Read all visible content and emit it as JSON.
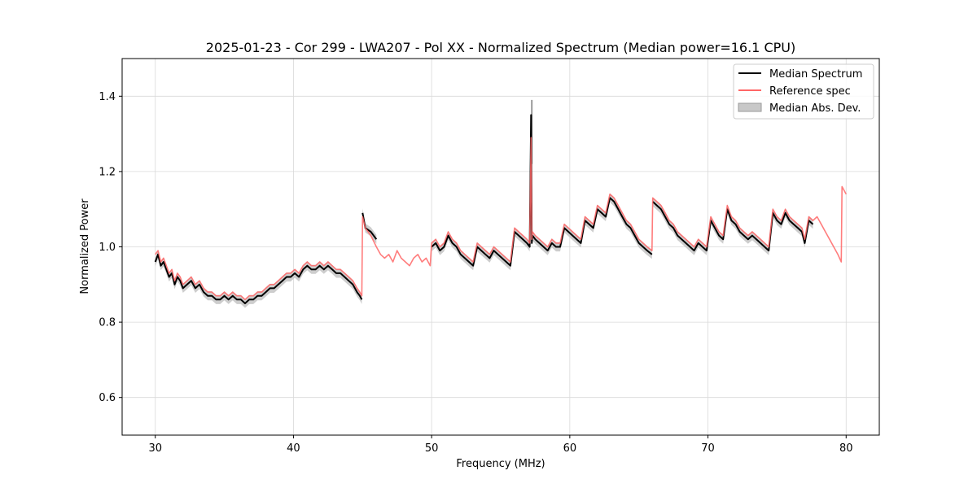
{
  "chart_data": {
    "type": "line",
    "title": "2025-01-23 - Cor 299 - LWA207 - Pol XX - Normalized Spectrum (Median power=16.1 CPU)",
    "xlabel": "Frequency (MHz)",
    "ylabel": "Normalized Power",
    "xlim": [
      27.6,
      82.4
    ],
    "ylim": [
      0.5,
      1.5
    ],
    "xticks": [
      30,
      40,
      50,
      60,
      70,
      80
    ],
    "yticks": [
      0.6,
      0.8,
      1.0,
      1.2,
      1.4
    ],
    "xtick_labels": [
      "30",
      "40",
      "50",
      "60",
      "70",
      "80"
    ],
    "ytick_labels": [
      "0.6",
      "0.8",
      "1.0",
      "1.2",
      "1.4"
    ],
    "grid": true,
    "legend_position": "top-right",
    "colors": {
      "median": "#000000",
      "reference": "#ff6666",
      "mad_fill": "#c8c8c8",
      "mad_edge": "#9a9a9a"
    },
    "series": [
      {
        "name": "Median Spectrum",
        "segments": [
          {
            "x": [
              30.0,
              30.2,
              30.4,
              30.6,
              30.8,
              31.0,
              31.2,
              31.4,
              31.6,
              31.8,
              32.0,
              32.3,
              32.6,
              32.9,
              33.2,
              33.5,
              33.8,
              34.1,
              34.4,
              34.7,
              35.0,
              35.3,
              35.6,
              35.9,
              36.2,
              36.5,
              36.8,
              37.1,
              37.4,
              37.7,
              38.0,
              38.3,
              38.6,
              38.9,
              39.2,
              39.5,
              39.8,
              40.1,
              40.4,
              40.7,
              41.0,
              41.3,
              41.6,
              41.9,
              42.2,
              42.5,
              42.8,
              43.1,
              43.4,
              43.7,
              44.0,
              44.3,
              44.6,
              44.8,
              44.95
            ],
            "y": [
              0.96,
              0.98,
              0.95,
              0.96,
              0.94,
              0.92,
              0.93,
              0.9,
              0.92,
              0.91,
              0.89,
              0.9,
              0.91,
              0.89,
              0.9,
              0.88,
              0.87,
              0.87,
              0.86,
              0.86,
              0.87,
              0.86,
              0.87,
              0.86,
              0.86,
              0.85,
              0.86,
              0.86,
              0.87,
              0.87,
              0.88,
              0.89,
              0.89,
              0.9,
              0.91,
              0.92,
              0.92,
              0.93,
              0.92,
              0.94,
              0.95,
              0.94,
              0.94,
              0.95,
              0.94,
              0.95,
              0.94,
              0.93,
              0.93,
              0.92,
              0.91,
              0.9,
              0.88,
              0.87,
              0.86
            ]
          },
          {
            "x": [
              45.0,
              45.2,
              45.6,
              46.0
            ],
            "y": [
              1.09,
              1.05,
              1.04,
              1.02
            ]
          },
          {
            "x": [
              50.0,
              50.3,
              50.6,
              50.9,
              51.2,
              51.5,
              51.8,
              52.1,
              52.4,
              52.7,
              53.0,
              53.3,
              53.6,
              53.9,
              54.2,
              54.5,
              54.8,
              55.1,
              55.4,
              55.7,
              56.0,
              56.3,
              56.6,
              56.9,
              57.1,
              57.2,
              57.25,
              57.3,
              57.5,
              57.8,
              58.1,
              58.4,
              58.7,
              59.0,
              59.3,
              59.6,
              59.9,
              60.2,
              60.5,
              60.8,
              61.1,
              61.4,
              61.7,
              62.0,
              62.3,
              62.6,
              62.9,
              63.2,
              63.5,
              63.8,
              64.1,
              64.4,
              64.7,
              65.0,
              65.3,
              65.6,
              65.95
            ],
            "y": [
              1.0,
              1.01,
              0.99,
              1.0,
              1.03,
              1.01,
              1.0,
              0.98,
              0.97,
              0.96,
              0.95,
              1.0,
              0.99,
              0.98,
              0.97,
              0.99,
              0.98,
              0.97,
              0.96,
              0.95,
              1.04,
              1.03,
              1.02,
              1.01,
              1.0,
              1.35,
              1.01,
              1.03,
              1.02,
              1.01,
              1.0,
              0.99,
              1.01,
              1.0,
              1.0,
              1.05,
              1.04,
              1.03,
              1.02,
              1.01,
              1.07,
              1.06,
              1.05,
              1.1,
              1.09,
              1.08,
              1.13,
              1.12,
              1.1,
              1.08,
              1.06,
              1.05,
              1.03,
              1.01,
              1.0,
              0.99,
              0.98
            ]
          },
          {
            "x": [
              66.0,
              66.3,
              66.6,
              66.9,
              67.2,
              67.5,
              67.8,
              68.1,
              68.4,
              68.7,
              69.0,
              69.3,
              69.6,
              69.9,
              70.2,
              70.5,
              70.8,
              71.1,
              71.4,
              71.7,
              72.0,
              72.3,
              72.6,
              72.9,
              73.2,
              73.5,
              73.8,
              74.1,
              74.4,
              74.7,
              75.0,
              75.3,
              75.6,
              75.9,
              76.2,
              76.5,
              76.8,
              77.0,
              77.3,
              77.6
            ],
            "y": [
              1.12,
              1.11,
              1.1,
              1.08,
              1.06,
              1.05,
              1.03,
              1.02,
              1.01,
              1.0,
              0.99,
              1.01,
              1.0,
              0.99,
              1.07,
              1.05,
              1.03,
              1.02,
              1.1,
              1.07,
              1.06,
              1.04,
              1.03,
              1.02,
              1.03,
              1.02,
              1.01,
              1.0,
              0.99,
              1.09,
              1.07,
              1.06,
              1.09,
              1.07,
              1.06,
              1.05,
              1.04,
              1.01,
              1.07,
              1.06
            ]
          }
        ]
      },
      {
        "name": "Reference spec",
        "segments": [
          {
            "x": [
              30.0,
              30.2,
              30.4,
              30.6,
              30.8,
              31.0,
              31.2,
              31.4,
              31.6,
              31.8,
              32.0,
              32.3,
              32.6,
              32.9,
              33.2,
              33.5,
              33.8,
              34.1,
              34.4,
              34.7,
              35.0,
              35.3,
              35.6,
              35.9,
              36.2,
              36.5,
              36.8,
              37.1,
              37.4,
              37.7,
              38.0,
              38.3,
              38.6,
              38.9,
              39.2,
              39.5,
              39.8,
              40.1,
              40.4,
              40.7,
              41.0,
              41.3,
              41.6,
              41.9,
              42.2,
              42.5,
              42.8,
              43.1,
              43.4,
              43.7,
              44.0,
              44.3,
              44.6,
              44.8,
              44.95,
              45.0,
              45.2,
              45.6,
              46.0,
              46.3,
              46.6,
              46.9,
              47.2,
              47.5,
              47.8,
              48.1,
              48.4,
              48.7,
              49.0,
              49.3,
              49.6,
              49.9,
              50.0,
              50.3,
              50.6,
              50.9,
              51.2,
              51.5,
              51.8,
              52.1,
              52.4,
              52.7,
              53.0,
              53.3,
              53.6,
              53.9,
              54.2,
              54.5,
              54.8,
              55.1,
              55.4,
              55.7,
              56.0,
              56.3,
              56.6,
              56.9,
              57.1,
              57.2,
              57.25,
              57.3,
              57.5,
              57.8,
              58.1,
              58.4,
              58.7,
              59.0,
              59.3,
              59.6,
              59.9,
              60.2,
              60.5,
              60.8,
              61.1,
              61.4,
              61.7,
              62.0,
              62.3,
              62.6,
              62.9,
              63.2,
              63.5,
              63.8,
              64.1,
              64.4,
              64.7,
              65.0,
              65.3,
              65.6,
              65.95,
              66.0,
              66.3,
              66.6,
              66.9,
              67.2,
              67.5,
              67.8,
              68.1,
              68.4,
              68.7,
              69.0,
              69.3,
              69.6,
              69.9,
              70.2,
              70.5,
              70.8,
              71.1,
              71.4,
              71.7,
              72.0,
              72.3,
              72.6,
              72.9,
              73.2,
              73.5,
              73.8,
              74.1,
              74.4,
              74.7,
              75.0,
              75.3,
              75.6,
              75.9,
              76.2,
              76.5,
              76.8,
              77.0,
              77.3,
              77.6,
              77.9,
              78.2,
              78.5,
              78.8,
              79.1,
              79.4,
              79.65,
              79.7,
              80.0
            ],
            "y": [
              0.98,
              0.99,
              0.96,
              0.97,
              0.95,
              0.93,
              0.94,
              0.91,
              0.93,
              0.92,
              0.9,
              0.91,
              0.92,
              0.9,
              0.91,
              0.89,
              0.88,
              0.88,
              0.87,
              0.87,
              0.88,
              0.87,
              0.88,
              0.87,
              0.87,
              0.86,
              0.87,
              0.87,
              0.88,
              0.88,
              0.89,
              0.9,
              0.9,
              0.91,
              0.92,
              0.93,
              0.93,
              0.94,
              0.93,
              0.95,
              0.96,
              0.95,
              0.95,
              0.96,
              0.95,
              0.96,
              0.95,
              0.94,
              0.94,
              0.93,
              0.92,
              0.91,
              0.89,
              0.88,
              0.87,
              1.08,
              1.05,
              1.03,
              1.0,
              0.98,
              0.97,
              0.98,
              0.96,
              0.99,
              0.97,
              0.96,
              0.95,
              0.97,
              0.98,
              0.96,
              0.97,
              0.95,
              1.01,
              1.02,
              1.0,
              1.01,
              1.04,
              1.02,
              1.01,
              0.99,
              0.98,
              0.97,
              0.96,
              1.01,
              1.0,
              0.99,
              0.98,
              1.0,
              0.99,
              0.98,
              0.97,
              0.96,
              1.05,
              1.04,
              1.03,
              1.02,
              1.01,
              1.29,
              1.02,
              1.04,
              1.03,
              1.02,
              1.01,
              1.0,
              1.02,
              1.01,
              1.01,
              1.06,
              1.05,
              1.04,
              1.03,
              1.02,
              1.08,
              1.07,
              1.06,
              1.11,
              1.1,
              1.09,
              1.14,
              1.13,
              1.11,
              1.09,
              1.07,
              1.06,
              1.04,
              1.02,
              1.01,
              1.0,
              0.99,
              1.13,
              1.12,
              1.11,
              1.09,
              1.07,
              1.06,
              1.04,
              1.03,
              1.02,
              1.01,
              1.0,
              1.02,
              1.01,
              1.0,
              1.08,
              1.06,
              1.04,
              1.03,
              1.11,
              1.08,
              1.07,
              1.05,
              1.04,
              1.03,
              1.04,
              1.03,
              1.02,
              1.01,
              1.0,
              1.1,
              1.08,
              1.07,
              1.1,
              1.08,
              1.07,
              1.06,
              1.05,
              1.02,
              1.08,
              1.07,
              1.08,
              1.06,
              1.04,
              1.02,
              1.0,
              0.98,
              0.96,
              1.16,
              1.14
            ]
          }
        ]
      }
    ],
    "mad_band": {
      "name": "Median Abs. Dev.",
      "width": 0.012,
      "spike": {
        "x": 57.25,
        "low": 1.22,
        "high": 1.39
      }
    },
    "legend": [
      "Median Spectrum",
      "Reference spec",
      "Median Abs. Dev."
    ]
  }
}
